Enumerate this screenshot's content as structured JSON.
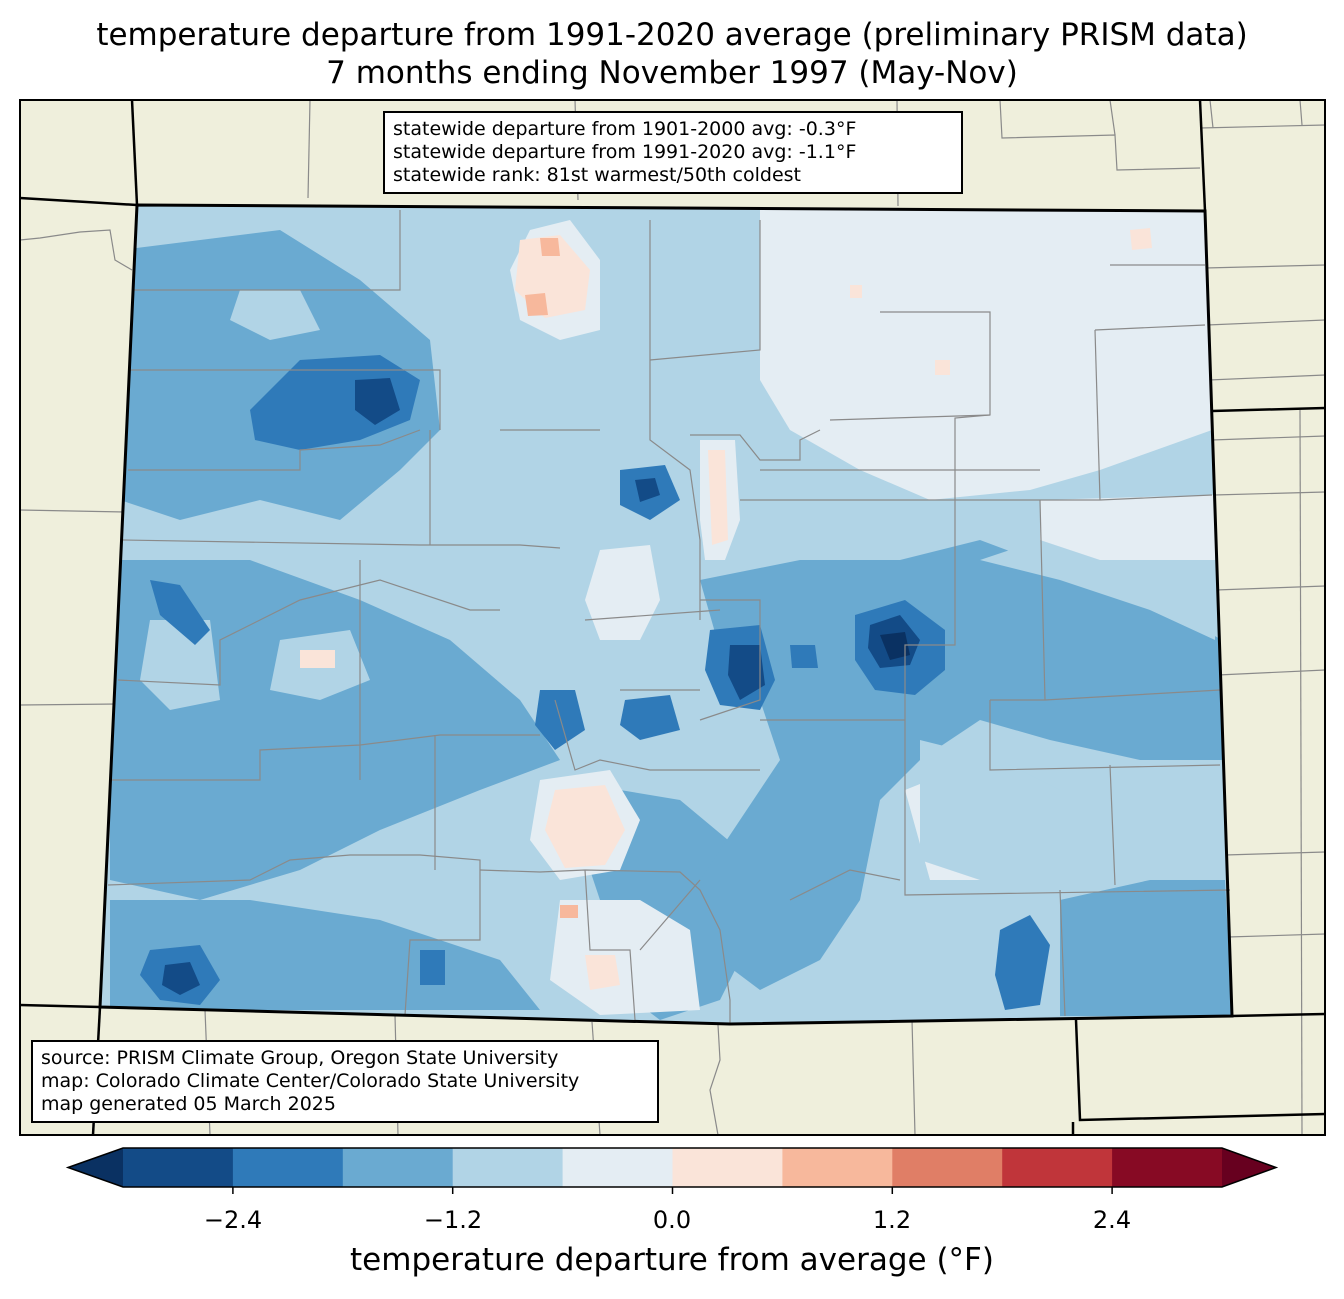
{
  "title": {
    "line1": "temperature departure from 1991-2020 average (preliminary PRISM data)",
    "line2": "7 months ending November 1997 (May-Nov)"
  },
  "stats": {
    "line1": "statewide departure from 1901-2000 avg: -0.3°F",
    "line2": "statewide departure from 1991-2020 avg: -1.1°F",
    "line3": "statewide rank: 81st warmest/50th coldest"
  },
  "source": {
    "line1": "source: PRISM Climate Group, Oregon State University",
    "line2": "map: Colorado Climate Center/Colorado State University",
    "line3": "map generated 05 March 2025"
  },
  "colorbar": {
    "label": "temperature departure from average (°F)",
    "ticks": [
      "−2.4",
      "−1.2",
      "0.0",
      "1.2",
      "2.4"
    ],
    "range": [
      -3.0,
      3.0
    ],
    "step": 0.6,
    "colors": [
      "#0a3162",
      "#134b87",
      "#2f7ab9",
      "#6aaad1",
      "#b1d4e6",
      "#e4edf3",
      "#fae4d9",
      "#f7b89c",
      "#e07e66",
      "#c0353a",
      "#870a24",
      "#67001f"
    ]
  },
  "map": {
    "state": "Colorado",
    "background_color": "#efefdc"
  }
}
